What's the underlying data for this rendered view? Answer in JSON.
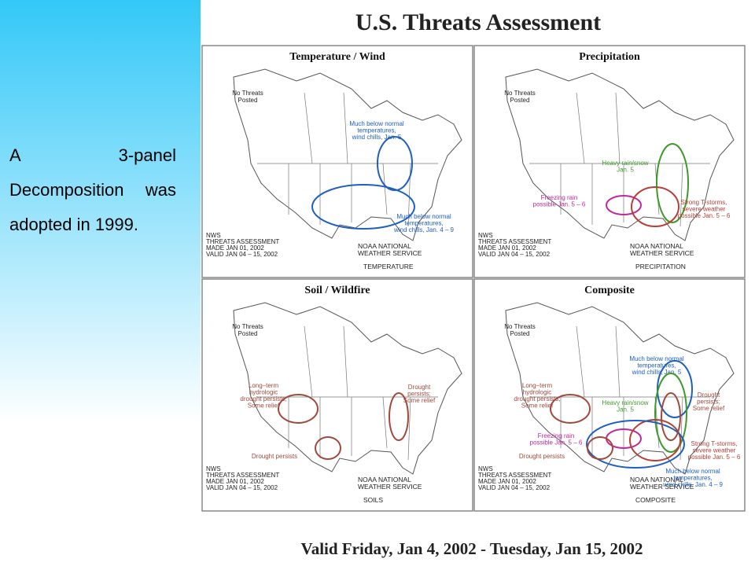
{
  "slide": {
    "text": "A 3-panel Decomposition was adopted in 1999."
  },
  "figure": {
    "title": "U.S. Threats Assessment",
    "footer": "Valid Friday, Jan 4, 2002 - Tuesday, Jan 15, 2002",
    "panels": [
      {
        "title": "Temperature / Wind",
        "corner": [
          "No Threats",
          "Posted"
        ],
        "label": "TEMPERATURE",
        "stamp": [
          "NWS",
          "THREATS ASSESSMENT",
          "MADE  JAN 01, 2002",
          "VALID  JAN 04 – 15, 2002"
        ],
        "agency": [
          "NOAA NATIONAL",
          "WEATHER SERVICE"
        ],
        "annotations": [
          {
            "lines": [
              "Much below normal",
              "temperatures,",
              "wind chills, Jan. 5"
            ],
            "color": "#1f5fbf"
          },
          {
            "lines": [
              "Much below normal",
              "temperatures,",
              "wind chills, Jan. 4 – 9"
            ],
            "color": "#1f5fbf"
          }
        ]
      },
      {
        "title": "Precipitation",
        "corner": [
          "No Threats",
          "Posted"
        ],
        "label": "PRECIPITATION",
        "stamp": [
          "NWS",
          "THREATS ASSESSMENT",
          "MADE  JAN 01, 2002",
          "VALID  JAN 04 – 15, 2002"
        ],
        "agency": [
          "NOAA NATIONAL",
          "WEATHER SERVICE"
        ],
        "annotations": [
          {
            "lines": [
              "Heavy rain/snow",
              "Jan. 5"
            ],
            "color": "#3f9a2a"
          },
          {
            "lines": [
              "Freezing rain",
              "possible Jan. 5 – 6"
            ],
            "color": "#c0279a"
          },
          {
            "lines": [
              "Strong T-storms,",
              "severe weather",
              "possible Jan. 5 – 6"
            ],
            "color": "#b5403a"
          }
        ]
      },
      {
        "title": "Soil / Wildfire",
        "corner": [
          "No Threats",
          "Posted"
        ],
        "label": "SOILS",
        "stamp": [
          "NWS",
          "THREATS ASSESSMENT",
          "MADE  JAN 01, 2002",
          "VALID  JAN 04 – 15, 2002"
        ],
        "agency": [
          "NOAA NATIONAL",
          "WEATHER SERVICE"
        ],
        "annotations": [
          {
            "lines": [
              "Long–term",
              "hydrologic",
              "drought persists;",
              "Some relief"
            ],
            "color": "#a04a3c"
          },
          {
            "lines": [
              "Drought",
              "persists;",
              "Some relief"
            ],
            "color": "#a04a3c"
          },
          {
            "lines": [
              "Drought persists"
            ],
            "color": "#a04a3c"
          }
        ]
      },
      {
        "title": "Composite",
        "corner": [
          "No Threats",
          "Posted"
        ],
        "label": "COMPOSITE",
        "stamp": [
          "NWS",
          "THREATS ASSESSMENT",
          "MADE  JAN 01, 2002",
          "VALID  JAN 04 – 15, 2002"
        ],
        "agency": [
          "NOAA NATIONAL",
          "WEATHER SERVICE"
        ],
        "annotations": [
          {
            "lines": [
              "Much below normal",
              "temperatures,",
              "wind chills, Jan. 5"
            ],
            "color": "#1f5fbf"
          },
          {
            "lines": [
              "Heavy rain/snow",
              "Jan. 5"
            ],
            "color": "#3f9a2a"
          },
          {
            "lines": [
              "Freezing rain",
              "possible Jan. 5 – 6"
            ],
            "color": "#c0279a"
          },
          {
            "lines": [
              "Strong T-storms,",
              "severe weather",
              "possible Jan. 5 – 6"
            ],
            "color": "#b5403a"
          },
          {
            "lines": [
              "Much below normal",
              "temperatures,",
              "wind chills, Jan. 4 – 9"
            ],
            "color": "#1f5fbf"
          },
          {
            "lines": [
              "Long–term",
              "hydrologic",
              "drought persists;",
              "Some relief"
            ],
            "color": "#a04a3c"
          },
          {
            "lines": [
              "Drought",
              "persists;",
              "Some relief"
            ],
            "color": "#a04a3c"
          },
          {
            "lines": [
              "Drought persists"
            ],
            "color": "#a04a3c"
          }
        ]
      }
    ]
  }
}
